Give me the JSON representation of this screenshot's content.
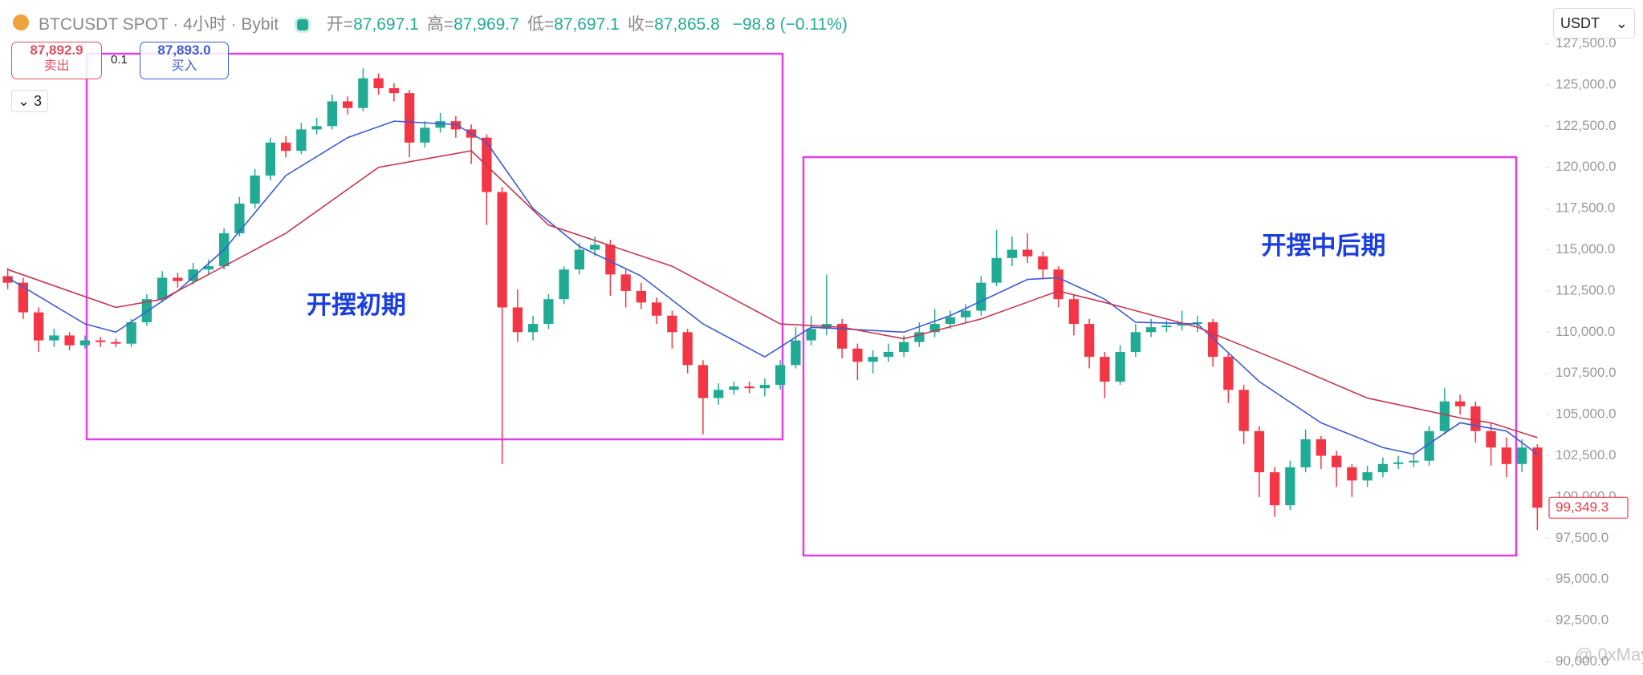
{
  "toolbar": {
    "symbol": "BTCUSDT SPOT · 4小时 · Bybit",
    "ohlc": [
      {
        "label": "开=",
        "value": "87,697.1"
      },
      {
        "label": "高=",
        "value": "87,969.7"
      },
      {
        "label": "低=",
        "value": "87,697.1"
      },
      {
        "label": "收=",
        "value": "87,865.8"
      }
    ],
    "change": "−98.8 (−0.11%)",
    "sell_price": "87,892.9",
    "sell_label": "卖出",
    "quantity": "0.1",
    "buy_price": "87,893.0",
    "buy_label": "买入",
    "indicators": "3",
    "currency": "USDT"
  },
  "watermark": "@ 0xMay",
  "chart_data": {
    "type": "candlestick",
    "up_color": "#22ab94",
    "down_color": "#f23645",
    "open": [
      113400,
      113000,
      111200,
      109500,
      109800,
      109200,
      109500,
      109400,
      109300,
      110600,
      112000,
      113300,
      113100,
      113800,
      114000,
      116000,
      117800,
      119500,
      121500,
      121000,
      122300,
      122500,
      124000,
      123600,
      125400,
      124800,
      124500,
      121500,
      122400,
      122800,
      122300,
      121800,
      118500,
      111500,
      110000,
      110500,
      112000,
      113800,
      115000,
      115300,
      113500,
      112500,
      111800,
      111000,
      110000,
      108000,
      106000,
      106500,
      106700,
      106600,
      106800,
      108000,
      109500,
      110200,
      110500,
      109000,
      108200,
      108500,
      108800,
      109400,
      110000,
      110500,
      110900,
      111300,
      113000,
      114500,
      115000,
      114600,
      113800,
      112000,
      110500,
      108500,
      107000,
      108800,
      110000,
      110300,
      110400,
      110500,
      110600,
      108500,
      106500,
      104000,
      101500,
      99500,
      101800,
      103500,
      102500,
      101800,
      101000,
      101500,
      102000,
      102100,
      102200,
      104000,
      105800,
      105500,
      104000,
      103000,
      102000,
      103000
    ],
    "high": [
      113900,
      113300,
      111500,
      110200,
      110000,
      109800,
      109700,
      109600,
      110800,
      112300,
      113700,
      113600,
      114200,
      114400,
      116300,
      118200,
      119900,
      121800,
      121900,
      122700,
      123000,
      124400,
      124300,
      126000,
      125700,
      125100,
      124700,
      122800,
      123300,
      123100,
      122600,
      122000,
      118800,
      112600,
      111000,
      112300,
      114000,
      115400,
      115800,
      115600,
      113800,
      113000,
      112100,
      111300,
      110200,
      108300,
      106900,
      107000,
      107000,
      107200,
      108300,
      110300,
      111000,
      113500,
      110800,
      109300,
      108900,
      109300,
      109800,
      110600,
      111400,
      111300,
      111700,
      113400,
      116200,
      115800,
      116000,
      114900,
      114000,
      112300,
      110800,
      108800,
      109200,
      110500,
      110800,
      110700,
      111300,
      111000,
      110800,
      108700,
      106800,
      104300,
      101800,
      102200,
      104100,
      103700,
      102800,
      102000,
      101900,
      102400,
      102500,
      102600,
      104300,
      106600,
      106200,
      105800,
      104500,
      103600,
      103500,
      103200
    ],
    "low": [
      112600,
      110800,
      108800,
      109100,
      108900,
      109000,
      109100,
      109100,
      109100,
      110400,
      111800,
      112700,
      112900,
      113500,
      113800,
      115800,
      117500,
      119200,
      120600,
      120800,
      122000,
      122300,
      123200,
      123400,
      124400,
      124000,
      120600,
      121200,
      122100,
      121800,
      120200,
      116500,
      102000,
      109400,
      109500,
      110200,
      111700,
      113500,
      114600,
      112200,
      111500,
      111400,
      110500,
      109000,
      107500,
      103800,
      105600,
      106200,
      106300,
      106100,
      106500,
      107800,
      109200,
      109800,
      108400,
      107100,
      107500,
      108200,
      108500,
      109100,
      109700,
      110200,
      110600,
      111000,
      112800,
      114000,
      114200,
      113200,
      111500,
      109800,
      107800,
      106000,
      106800,
      108500,
      109700,
      110000,
      110100,
      110000,
      107900,
      105700,
      103200,
      100000,
      98800,
      99200,
      101500,
      101700,
      100600,
      100000,
      100600,
      101200,
      101700,
      101800,
      101900,
      103800,
      105000,
      103300,
      101900,
      101200,
      101500,
      98000
    ],
    "close": [
      113000,
      111200,
      109500,
      109800,
      109200,
      109500,
      109400,
      109300,
      110600,
      112000,
      113300,
      113100,
      113800,
      114000,
      116000,
      117800,
      119500,
      121500,
      121000,
      122300,
      122500,
      124000,
      123600,
      125400,
      124800,
      124500,
      121500,
      122400,
      122800,
      122300,
      121800,
      118500,
      111500,
      110000,
      110500,
      112000,
      113800,
      115000,
      115300,
      113500,
      112500,
      111800,
      111000,
      110000,
      108000,
      106000,
      106500,
      106700,
      106600,
      106800,
      108000,
      109500,
      110200,
      110500,
      109000,
      108200,
      108500,
      108800,
      109400,
      110000,
      110500,
      110900,
      111300,
      113000,
      114500,
      115000,
      114600,
      113800,
      112000,
      110500,
      108500,
      107000,
      108800,
      110000,
      110300,
      110400,
      110500,
      110600,
      108500,
      106500,
      104000,
      101500,
      99500,
      101800,
      103500,
      102500,
      101800,
      101000,
      101500,
      102000,
      102100,
      102200,
      104000,
      105800,
      105500,
      104000,
      103000,
      102000,
      103000,
      99349.3
    ],
    "last_price_label": "99,349.3",
    "lines": [
      {
        "color": "#3d5bd9",
        "x": [
          0,
          5,
          7,
          11,
          14,
          18,
          22,
          25,
          29,
          31,
          34,
          37,
          41,
          45,
          49,
          52,
          58,
          61,
          66,
          68,
          71,
          73,
          77,
          81,
          85,
          89,
          91,
          94,
          97,
          99
        ],
        "values": [
          113300,
          110500,
          110000,
          112500,
          115000,
          119500,
          121800,
          122800,
          122600,
          121500,
          117500,
          115200,
          113400,
          110500,
          108500,
          110300,
          110000,
          111000,
          113200,
          113300,
          112000,
          110600,
          110500,
          107000,
          104500,
          103000,
          102600,
          104500,
          104000,
          102600
        ]
      },
      {
        "color": "#c8354f",
        "x": [
          0,
          7,
          10,
          18,
          24,
          30,
          35,
          43,
          50,
          54,
          58,
          63,
          68,
          71,
          75,
          77,
          83,
          88,
          94,
          96,
          99
        ],
        "values": [
          113800,
          111500,
          112000,
          116000,
          120000,
          121000,
          116500,
          114000,
          110500,
          110300,
          109600,
          110800,
          112500,
          111800,
          110800,
          110300,
          108000,
          106000,
          104800,
          104500,
          103600
        ]
      }
    ],
    "ylim": [
      89200,
      130150
    ],
    "yticks": [
      {
        "value": 90000,
        "label": "90,000.0"
      },
      {
        "value": 92500,
        "label": "92,500.0"
      },
      {
        "value": 95000,
        "label": "95,000.0"
      },
      {
        "value": 97500,
        "label": "97,500.0"
      },
      {
        "value": 100000,
        "label": "100,000.0"
      },
      {
        "value": 102500,
        "label": "102,500.0"
      },
      {
        "value": 105000,
        "label": "105,000.0"
      },
      {
        "value": 107500,
        "label": "107,500.0"
      },
      {
        "value": 110000,
        "label": "110,000.0"
      },
      {
        "value": 112500,
        "label": "112,500.0"
      },
      {
        "value": 115000,
        "label": "115,000.0"
      },
      {
        "value": 117500,
        "label": "117,500.0"
      },
      {
        "value": 120000,
        "label": "120,000.0"
      },
      {
        "value": 122500,
        "label": "122,500.0"
      },
      {
        "value": 125000,
        "label": "125,000.0"
      },
      {
        "value": 127500,
        "label": "127,500.0"
      }
    ],
    "annotations": [
      "开摆初期",
      "开摆中后期"
    ]
  }
}
